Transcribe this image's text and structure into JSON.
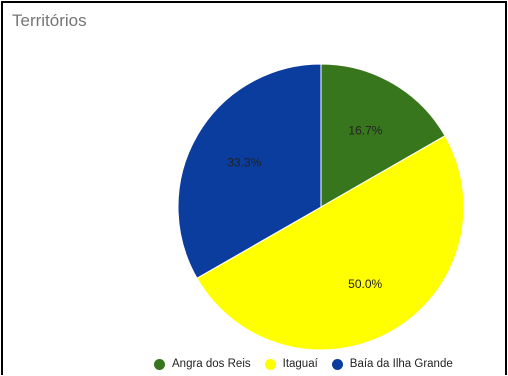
{
  "chart_data": {
    "type": "pie",
    "title": "Territórios",
    "slices": [
      {
        "label": "Angra dos Reis",
        "value": 16.7,
        "display": "16.7%",
        "color": "#38761d"
      },
      {
        "label": "Itaguaí",
        "value": 50.0,
        "display": "50.0%",
        "color": "#ffff00"
      },
      {
        "label": "Baía da Ilha Grande",
        "value": 33.3,
        "display": "33.3%",
        "color": "#0b3d9f"
      }
    ],
    "legend_position": "bottom"
  }
}
